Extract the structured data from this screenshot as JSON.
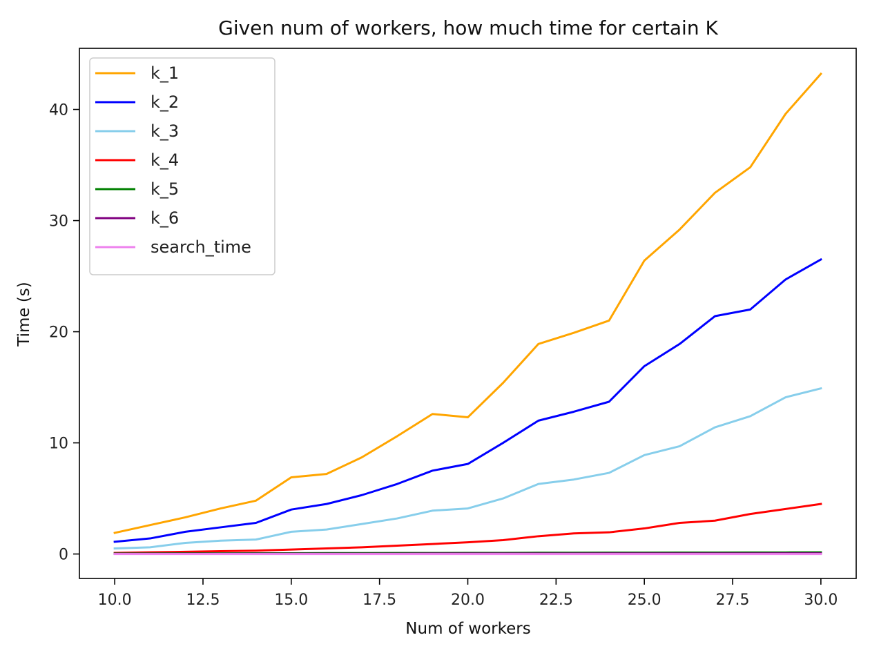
{
  "chart_data": {
    "type": "line",
    "title": "Given num of workers, how much time for certain K",
    "xlabel": "Num of workers",
    "ylabel": "Time (s)",
    "xlim": [
      9.0,
      31.0
    ],
    "ylim": [
      -2.2,
      45.5
    ],
    "xticks": [
      10.0,
      12.5,
      15.0,
      17.5,
      20.0,
      22.5,
      25.0,
      27.5,
      30.0
    ],
    "xtick_labels": [
      "10.0",
      "12.5",
      "15.0",
      "17.5",
      "20.0",
      "22.5",
      "25.0",
      "27.5",
      "30.0"
    ],
    "yticks": [
      0,
      10,
      20,
      30,
      40
    ],
    "ytick_labels": [
      "0",
      "10",
      "20",
      "30",
      "40"
    ],
    "grid": false,
    "legend_position": "top-left",
    "x": [
      10,
      11,
      12,
      13,
      14,
      15,
      16,
      17,
      18,
      19,
      20,
      21,
      22,
      23,
      24,
      25,
      26,
      27,
      28,
      29,
      30
    ],
    "series": [
      {
        "name": "k_1",
        "color": "#FFA500",
        "values": [
          1.9,
          2.6,
          3.3,
          4.1,
          4.8,
          6.9,
          7.2,
          8.7,
          10.6,
          12.6,
          12.3,
          15.4,
          18.9,
          19.9,
          21.0,
          26.4,
          29.2,
          32.5,
          34.8,
          39.6,
          43.2
        ]
      },
      {
        "name": "k_2",
        "color": "#0000FF",
        "values": [
          1.1,
          1.4,
          2.0,
          2.4,
          2.8,
          4.0,
          4.5,
          5.3,
          6.3,
          7.5,
          8.1,
          10.0,
          12.0,
          12.8,
          13.7,
          16.9,
          18.9,
          21.4,
          22.0,
          24.7,
          26.5
        ]
      },
      {
        "name": "k_3",
        "color": "#87CEEB",
        "values": [
          0.5,
          0.6,
          1.0,
          1.2,
          1.3,
          2.0,
          2.2,
          2.7,
          3.2,
          3.9,
          4.1,
          5.0,
          6.3,
          6.7,
          7.3,
          8.9,
          9.7,
          11.4,
          12.4,
          14.1,
          14.9
        ]
      },
      {
        "name": "k_4",
        "color": "#FF0000",
        "values": [
          0.1,
          0.15,
          0.2,
          0.25,
          0.3,
          0.4,
          0.5,
          0.6,
          0.75,
          0.9,
          1.05,
          1.25,
          1.6,
          1.85,
          1.95,
          2.3,
          2.8,
          3.0,
          3.6,
          4.05,
          4.5
        ]
      },
      {
        "name": "k_5",
        "color": "#008000",
        "values": [
          0.05,
          0.05,
          0.06,
          0.06,
          0.07,
          0.07,
          0.08,
          0.08,
          0.09,
          0.09,
          0.1,
          0.1,
          0.11,
          0.11,
          0.12,
          0.12,
          0.13,
          0.13,
          0.14,
          0.14,
          0.15
        ]
      },
      {
        "name": "k_6",
        "color": "#800080",
        "values": [
          0.02,
          0.02,
          0.02,
          0.02,
          0.03,
          0.03,
          0.03,
          0.03,
          0.03,
          0.04,
          0.04,
          0.04,
          0.04,
          0.04,
          0.05,
          0.05,
          0.05,
          0.05,
          0.05,
          0.06,
          0.06
        ]
      },
      {
        "name": "search_time",
        "color": "#EE82EE",
        "values": [
          0.0,
          0.0,
          0.0,
          0.0,
          0.0,
          0.0,
          0.0,
          0.0,
          0.0,
          0.0,
          0.0,
          0.0,
          0.0,
          0.0,
          0.0,
          0.0,
          0.0,
          0.0,
          0.0,
          0.0,
          0.0
        ]
      }
    ]
  }
}
